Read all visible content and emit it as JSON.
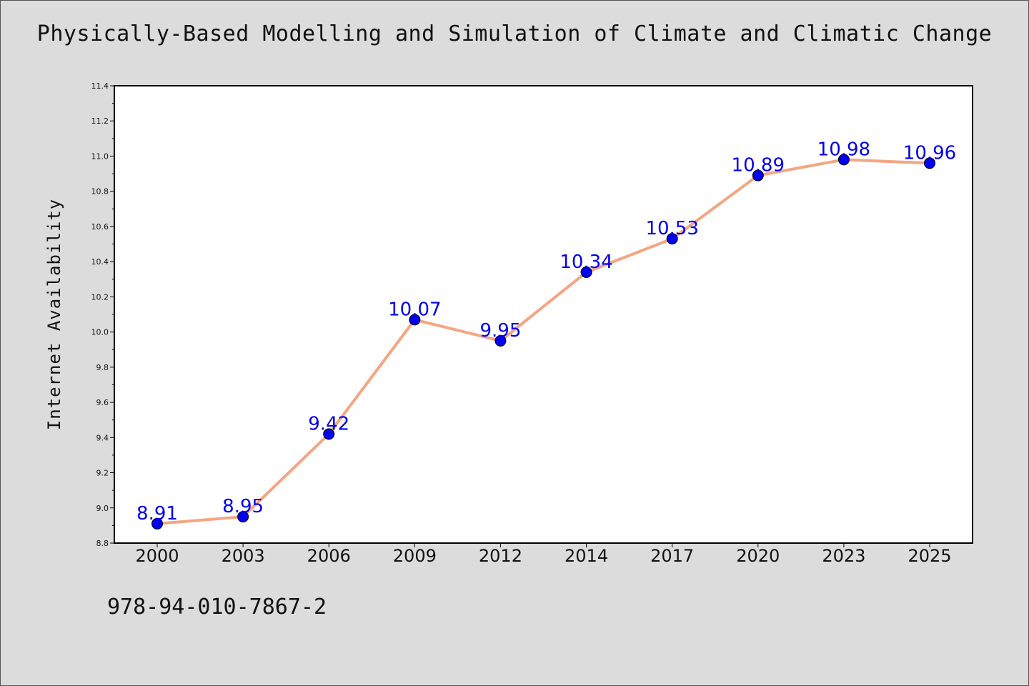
{
  "title": "Physically-Based Modelling and Simulation of Climate and Climatic Change",
  "isbn": "978-94-010-7867-2",
  "colors": {
    "line": "#F4A582",
    "marker": "#0000EE",
    "label": "#0000EE",
    "background": "#DCDCDC",
    "plot_background": "#FFFFFF"
  },
  "chart_data": {
    "type": "line",
    "title": "Physically-Based Modelling and Simulation of Climate and Climatic Change",
    "xlabel": "",
    "ylabel": "Internet Availability",
    "categories": [
      "2000",
      "2003",
      "2006",
      "2009",
      "2012",
      "2014",
      "2017",
      "2020",
      "2023",
      "2025"
    ],
    "series": [
      {
        "values": [
          8.91,
          8.95,
          9.42,
          10.07,
          9.95,
          10.34,
          10.53,
          10.89,
          10.98,
          10.96
        ],
        "data_labels": [
          "8.91",
          "8.95",
          "9.42",
          "10.07",
          "9.95",
          "10.34",
          "10.53",
          "10.89",
          "10.98",
          "10.96"
        ]
      }
    ],
    "ylim": [
      8.8,
      11.4
    ],
    "yticks": [
      "8.8",
      "9.0",
      "9.2",
      "9.4",
      "9.6",
      "9.8",
      "10.0",
      "10.2",
      "10.4",
      "10.6",
      "10.8",
      "11.0",
      "11.2",
      "11.4"
    ],
    "grid": false,
    "legend": "none"
  }
}
